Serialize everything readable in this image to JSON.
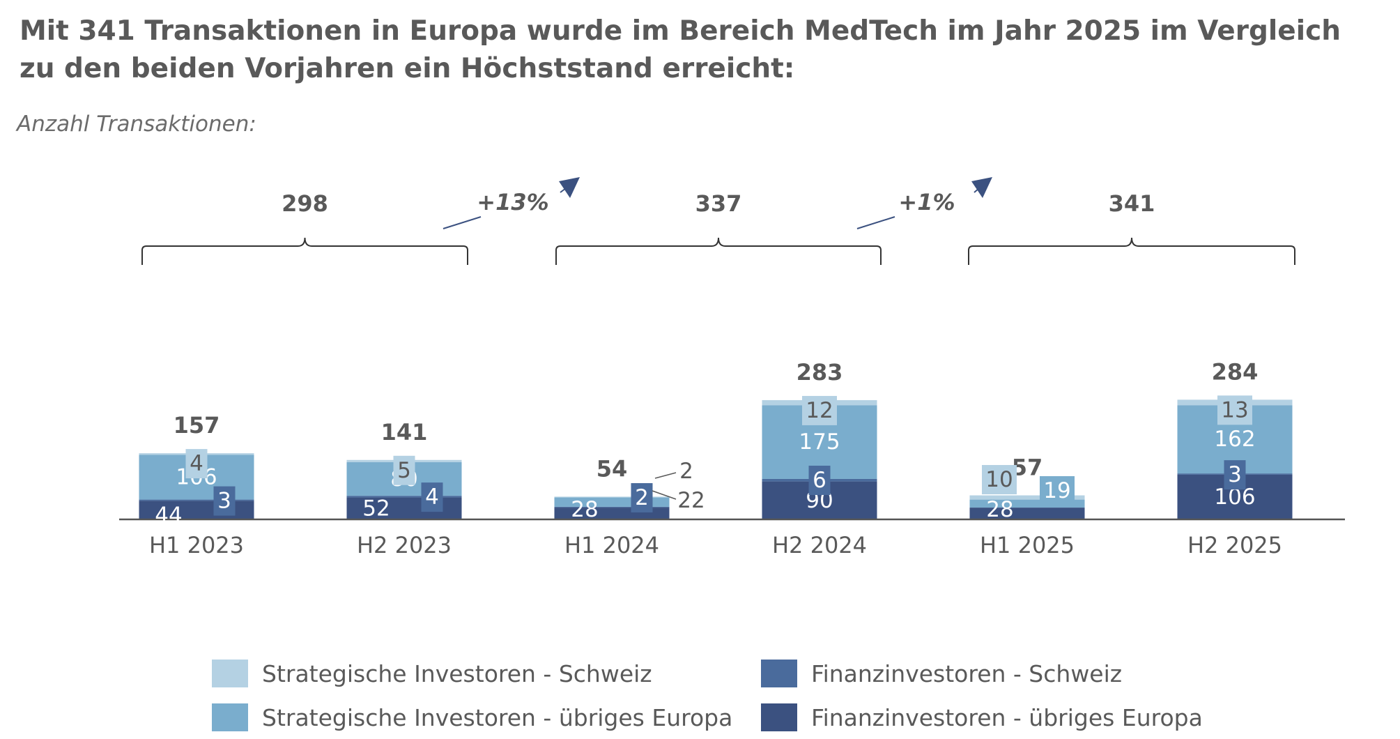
{
  "header": {
    "title": "Mit 341 Transaktionen in Europa wurde im Bereich MedTech im Jahr 2025 im Vergleich zu den beiden Vorjahren ein Höchststand erreicht:",
    "subtitle": "Anzahl Transaktionen:"
  },
  "colors": {
    "strat_ch": "#b4d1e3",
    "strat_eu": "#7aadcd",
    "fin_ch": "#4a6b9c",
    "fin_eu": "#3b5180",
    "text": "#595959",
    "axis": "#555555"
  },
  "chart_data": {
    "type": "bar",
    "stacked": true,
    "title": "Mit 341 Transaktionen in Europa wurde im Bereich MedTech im Jahr 2025 im Vergleich zu den beiden Vorjahren ein Höchststand erreicht:",
    "ylabel": "Anzahl Transaktionen:",
    "categories": [
      "H1 2023",
      "H2 2023",
      "H1 2024",
      "H2 2024",
      "H1 2025",
      "H2 2025"
    ],
    "series": [
      {
        "name": "Finanzinvestoren - übriges Europa",
        "color": "#3b5180",
        "values": [
          44,
          52,
          28,
          90,
          28,
          106
        ]
      },
      {
        "name": "Finanzinvestoren - Schweiz",
        "color": "#4a6b9c",
        "values": [
          3,
          4,
          2,
          6,
          0,
          3
        ]
      },
      {
        "name": "Strategische Investoren - übriges Europa",
        "color": "#7aadcd",
        "values": [
          106,
          80,
          22,
          175,
          19,
          162
        ]
      },
      {
        "name": "Strategische Investoren - Schweiz",
        "color": "#b4d1e3",
        "values": [
          4,
          5,
          2,
          12,
          10,
          13
        ]
      }
    ],
    "totals": [
      157,
      141,
      54,
      283,
      57,
      284
    ],
    "annual_totals": [
      {
        "year": "2023",
        "total": 298
      },
      {
        "year": "2024",
        "total": 337
      },
      {
        "year": "2025",
        "total": 341
      }
    ],
    "growth": [
      {
        "from": "2023",
        "to": "2024",
        "label": "+13%"
      },
      {
        "from": "2024",
        "to": "2025",
        "label": "+1%"
      }
    ],
    "ylim": [
      0,
      300
    ],
    "grid": false,
    "legend_position": "bottom"
  },
  "legend": {
    "items": [
      {
        "label": "Strategische Investoren - Schweiz",
        "color": "#b4d1e3"
      },
      {
        "label": "Finanzinvestoren - Schweiz",
        "color": "#4a6b9c"
      },
      {
        "label": "Strategische Investoren - übriges Europa",
        "color": "#7aadcd"
      },
      {
        "label": "Finanzinvestoren - übriges Europa",
        "color": "#3b5180"
      }
    ]
  }
}
